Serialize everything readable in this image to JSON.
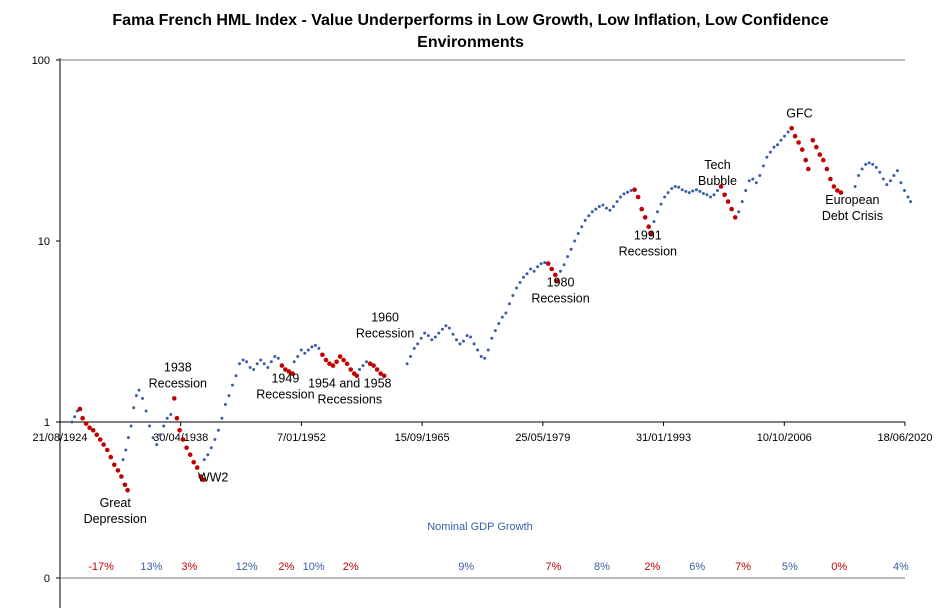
{
  "chart_data": {
    "type": "scatter",
    "title_line1": "Fama French HML Index - Value Underperforms in Low Growth, Low Inflation, Low Confidence",
    "title_line2": "Environments",
    "y_scale": "log",
    "y_ticks": [
      "100",
      "10",
      "1",
      "0"
    ],
    "x_ticks": [
      "21/08/1924",
      "30/04/1938",
      "7/01/1952",
      "15/09/1965",
      "25/05/1979",
      "31/01/1993",
      "10/10/2006",
      "18/06/2020"
    ],
    "xlim": [
      "1924-08-21",
      "2020-06-18"
    ],
    "colors": {
      "normal": "#3a5ea8",
      "weak": "#c00000",
      "axis": "#000000"
    },
    "series": [
      {
        "role": "normal",
        "points": [
          [
            1926.0,
            1.0
          ],
          [
            1926.3,
            1.07
          ],
          [
            1926.6,
            1.15
          ],
          [
            1931.8,
            0.62
          ],
          [
            1932.1,
            0.7
          ],
          [
            1932.4,
            0.82
          ],
          [
            1932.7,
            0.95
          ],
          [
            1933.0,
            1.2
          ],
          [
            1933.3,
            1.4
          ],
          [
            1933.6,
            1.5
          ],
          [
            1934.0,
            1.35
          ],
          [
            1934.4,
            1.15
          ],
          [
            1934.8,
            0.95
          ],
          [
            1935.2,
            0.82
          ],
          [
            1935.6,
            0.75
          ],
          [
            1936.0,
            0.85
          ],
          [
            1936.4,
            0.95
          ],
          [
            1936.8,
            1.05
          ],
          [
            1937.2,
            1.1
          ],
          [
            1941.0,
            0.62
          ],
          [
            1941.4,
            0.66
          ],
          [
            1941.8,
            0.72
          ],
          [
            1942.2,
            0.8
          ],
          [
            1942.6,
            0.9
          ],
          [
            1943.0,
            1.05
          ],
          [
            1943.4,
            1.25
          ],
          [
            1943.8,
            1.4
          ],
          [
            1944.2,
            1.6
          ],
          [
            1944.6,
            1.8
          ],
          [
            1945.0,
            2.1
          ],
          [
            1945.4,
            2.2
          ],
          [
            1945.8,
            2.15
          ],
          [
            1946.2,
            2.0
          ],
          [
            1946.6,
            1.95
          ],
          [
            1947.0,
            2.1
          ],
          [
            1947.4,
            2.2
          ],
          [
            1947.8,
            2.1
          ],
          [
            1948.2,
            2.0
          ],
          [
            1948.6,
            2.15
          ],
          [
            1949.0,
            2.3
          ],
          [
            1949.4,
            2.25
          ],
          [
            1951.2,
            2.15
          ],
          [
            1951.6,
            2.3
          ],
          [
            1952.0,
            2.5
          ],
          [
            1952.4,
            2.4
          ],
          [
            1952.8,
            2.5
          ],
          [
            1953.2,
            2.6
          ],
          [
            1953.6,
            2.65
          ],
          [
            1954.0,
            2.55
          ],
          [
            1958.6,
            1.95
          ],
          [
            1959.0,
            2.05
          ],
          [
            1959.4,
            2.15
          ],
          [
            1964.0,
            2.1
          ],
          [
            1964.4,
            2.3
          ],
          [
            1964.8,
            2.55
          ],
          [
            1965.2,
            2.7
          ],
          [
            1965.6,
            2.9
          ],
          [
            1966.0,
            3.1
          ],
          [
            1966.4,
            3.0
          ],
          [
            1966.8,
            2.85
          ],
          [
            1967.2,
            2.95
          ],
          [
            1967.6,
            3.1
          ],
          [
            1968.0,
            3.25
          ],
          [
            1968.4,
            3.4
          ],
          [
            1968.8,
            3.3
          ],
          [
            1969.2,
            3.05
          ],
          [
            1969.6,
            2.85
          ],
          [
            1970.0,
            2.7
          ],
          [
            1970.4,
            2.8
          ],
          [
            1970.8,
            3.0
          ],
          [
            1971.2,
            2.95
          ],
          [
            1971.6,
            2.7
          ],
          [
            1972.0,
            2.5
          ],
          [
            1972.4,
            2.3
          ],
          [
            1972.8,
            2.25
          ],
          [
            1973.2,
            2.5
          ],
          [
            1973.6,
            2.9
          ],
          [
            1974.0,
            3.2
          ],
          [
            1974.4,
            3.5
          ],
          [
            1974.8,
            3.8
          ],
          [
            1975.2,
            4.0
          ],
          [
            1975.6,
            4.5
          ],
          [
            1976.0,
            5.0
          ],
          [
            1976.4,
            5.5
          ],
          [
            1976.8,
            5.9
          ],
          [
            1977.2,
            6.3
          ],
          [
            1977.6,
            6.6
          ],
          [
            1978.0,
            7.0
          ],
          [
            1978.4,
            6.8
          ],
          [
            1978.8,
            7.2
          ],
          [
            1979.2,
            7.5
          ],
          [
            1979.6,
            7.6
          ],
          [
            1981.4,
            6.8
          ],
          [
            1981.8,
            7.4
          ],
          [
            1982.2,
            8.2
          ],
          [
            1982.6,
            9.0
          ],
          [
            1983.0,
            10.0
          ],
          [
            1983.4,
            11.0
          ],
          [
            1983.8,
            12.0
          ],
          [
            1984.2,
            13.0
          ],
          [
            1984.6,
            13.8
          ],
          [
            1985.0,
            14.5
          ],
          [
            1985.4,
            15.0
          ],
          [
            1985.8,
            15.5
          ],
          [
            1986.2,
            15.8
          ],
          [
            1986.6,
            15.2
          ],
          [
            1987.0,
            14.8
          ],
          [
            1987.4,
            15.5
          ],
          [
            1987.8,
            16.5
          ],
          [
            1988.2,
            17.5
          ],
          [
            1988.6,
            18.2
          ],
          [
            1989.0,
            18.6
          ],
          [
            1989.4,
            19.0
          ],
          [
            1992.0,
            12.8
          ],
          [
            1992.4,
            14.5
          ],
          [
            1992.8,
            16.0
          ],
          [
            1993.2,
            17.5
          ],
          [
            1993.6,
            18.5
          ],
          [
            1994.0,
            19.5
          ],
          [
            1994.4,
            20.0
          ],
          [
            1994.8,
            19.8
          ],
          [
            1995.2,
            19.2
          ],
          [
            1995.6,
            18.8
          ],
          [
            1996.0,
            18.5
          ],
          [
            1996.4,
            18.9
          ],
          [
            1996.8,
            19.2
          ],
          [
            1997.2,
            18.8
          ],
          [
            1997.6,
            18.3
          ],
          [
            1998.0,
            18.0
          ],
          [
            1998.4,
            17.5
          ],
          [
            1998.8,
            18.0
          ],
          [
            1999.2,
            19.0
          ],
          [
            2001.6,
            14.5
          ],
          [
            2002.0,
            16.5
          ],
          [
            2002.4,
            19.0
          ],
          [
            2002.8,
            21.5
          ],
          [
            2003.2,
            22.0
          ],
          [
            2003.6,
            21.0
          ],
          [
            2004.0,
            23.0
          ],
          [
            2004.4,
            26.0
          ],
          [
            2004.8,
            29.0
          ],
          [
            2005.2,
            31.0
          ],
          [
            2005.6,
            33.0
          ],
          [
            2006.0,
            34.0
          ],
          [
            2006.4,
            36.0
          ],
          [
            2006.8,
            38.0
          ],
          [
            2007.2,
            40.0
          ],
          [
            2014.8,
            20.0
          ],
          [
            2015.2,
            23.0
          ],
          [
            2015.6,
            25.0
          ],
          [
            2016.0,
            26.5
          ],
          [
            2016.4,
            27.0
          ],
          [
            2016.8,
            26.5
          ],
          [
            2017.2,
            25.5
          ],
          [
            2017.6,
            24.0
          ],
          [
            2018.0,
            22.0
          ],
          [
            2018.4,
            20.5
          ],
          [
            2018.8,
            21.5
          ],
          [
            2019.2,
            23.0
          ],
          [
            2019.6,
            24.5
          ],
          [
            2020.0,
            21.0
          ],
          [
            2020.4,
            19.0
          ],
          [
            2020.8,
            17.5
          ],
          [
            2021.1,
            16.5
          ]
        ]
      },
      {
        "role": "weak",
        "points": [
          [
            1926.9,
            1.18
          ],
          [
            1927.2,
            1.05
          ],
          [
            1927.6,
            0.98
          ],
          [
            1928.0,
            0.93
          ],
          [
            1928.4,
            0.9
          ],
          [
            1928.8,
            0.85
          ],
          [
            1929.2,
            0.8
          ],
          [
            1929.6,
            0.75
          ],
          [
            1930.0,
            0.7
          ],
          [
            1930.4,
            0.64
          ],
          [
            1930.8,
            0.58
          ],
          [
            1931.2,
            0.54
          ],
          [
            1931.6,
            0.5
          ],
          [
            1932.0,
            0.45
          ],
          [
            1932.3,
            0.42
          ],
          [
            1937.6,
            1.35
          ],
          [
            1937.9,
            1.05
          ],
          [
            1938.2,
            0.9
          ],
          [
            1938.6,
            0.8
          ],
          [
            1939.0,
            0.72
          ],
          [
            1939.4,
            0.66
          ],
          [
            1939.8,
            0.6
          ],
          [
            1940.2,
            0.56
          ],
          [
            1940.6,
            0.5
          ],
          [
            1940.9,
            0.48
          ],
          [
            1949.8,
            2.05
          ],
          [
            1950.2,
            1.95
          ],
          [
            1950.6,
            1.9
          ],
          [
            1951.0,
            1.85
          ],
          [
            1954.4,
            2.35
          ],
          [
            1954.8,
            2.2
          ],
          [
            1955.2,
            2.1
          ],
          [
            1955.6,
            2.05
          ],
          [
            1956.0,
            2.15
          ],
          [
            1956.4,
            2.3
          ],
          [
            1956.8,
            2.2
          ],
          [
            1957.2,
            2.1
          ],
          [
            1957.6,
            1.95
          ],
          [
            1958.0,
            1.85
          ],
          [
            1958.3,
            1.8
          ],
          [
            1959.8,
            2.1
          ],
          [
            1960.2,
            2.05
          ],
          [
            1960.6,
            1.95
          ],
          [
            1961.0,
            1.85
          ],
          [
            1961.4,
            1.8
          ],
          [
            1980.0,
            7.5
          ],
          [
            1980.4,
            7.0
          ],
          [
            1980.8,
            6.5
          ],
          [
            1981.0,
            6.0
          ],
          [
            1989.8,
            19.2
          ],
          [
            1990.2,
            17.5
          ],
          [
            1990.6,
            15.0
          ],
          [
            1991.0,
            13.5
          ],
          [
            1991.4,
            12.0
          ],
          [
            1991.7,
            11.0
          ],
          [
            1999.6,
            20.0
          ],
          [
            2000.0,
            18.0
          ],
          [
            2000.4,
            16.5
          ],
          [
            2000.8,
            15.0
          ],
          [
            2001.2,
            13.5
          ],
          [
            2007.6,
            42.0
          ],
          [
            2008.0,
            38.0
          ],
          [
            2008.4,
            35.0
          ],
          [
            2008.8,
            32.0
          ],
          [
            2009.2,
            28.0
          ],
          [
            2009.5,
            25.0
          ],
          [
            2010.0,
            36.0
          ],
          [
            2010.4,
            33.0
          ],
          [
            2010.8,
            30.0
          ],
          [
            2011.2,
            28.0
          ],
          [
            2011.6,
            25.0
          ],
          [
            2012.0,
            22.0
          ],
          [
            2012.4,
            20.0
          ],
          [
            2012.8,
            19.0
          ],
          [
            2013.2,
            18.5
          ]
        ]
      }
    ],
    "annotations": [
      {
        "lines": [
          "Great",
          "Depression"
        ],
        "x": 1930.9,
        "y": 0.34
      },
      {
        "lines": [
          "1938",
          "Recession"
        ],
        "x": 1938.0,
        "y": 1.9
      },
      {
        "lines": [
          "WW2"
        ],
        "x": 1942.0,
        "y": 0.47
      },
      {
        "lines": [
          "1949",
          "Recession"
        ],
        "x": 1950.2,
        "y": 1.65
      },
      {
        "lines": [
          "1954 and 1958",
          "Recessions"
        ],
        "x": 1957.5,
        "y": 1.55
      },
      {
        "lines": [
          "1960",
          "Recession"
        ],
        "x": 1961.5,
        "y": 3.6
      },
      {
        "lines": [
          "1980",
          "Recession"
        ],
        "x": 1981.4,
        "y": 5.6
      },
      {
        "lines": [
          "1991",
          "Recession"
        ],
        "x": 1991.3,
        "y": 10.2
      },
      {
        "lines": [
          "Tech",
          "Bubble"
        ],
        "x": 1999.2,
        "y": 25.0
      },
      {
        "lines": [
          "GFC"
        ],
        "x": 2008.5,
        "y": 48.0
      },
      {
        "lines": [
          "European",
          "Debt Crisis"
        ],
        "x": 2014.5,
        "y": 16.0
      }
    ],
    "gdp_label": "Nominal GDP Growth",
    "gdp_values": [
      {
        "text": "-17%",
        "x": 1929.3,
        "weak": true
      },
      {
        "text": "13%",
        "x": 1935.0,
        "weak": false
      },
      {
        "text": "3%",
        "x": 1939.3,
        "weak": true
      },
      {
        "text": "12%",
        "x": 1945.8,
        "weak": false
      },
      {
        "text": "2%",
        "x": 1950.3,
        "weak": true
      },
      {
        "text": "10%",
        "x": 1953.4,
        "weak": false
      },
      {
        "text": "2%",
        "x": 1957.6,
        "weak": true
      },
      {
        "text": "9%",
        "x": 1970.7,
        "weak": false
      },
      {
        "text": "7%",
        "x": 1980.6,
        "weak": true
      },
      {
        "text": "8%",
        "x": 1986.1,
        "weak": false
      },
      {
        "text": "2%",
        "x": 1991.8,
        "weak": true
      },
      {
        "text": "6%",
        "x": 1996.9,
        "weak": false
      },
      {
        "text": "7%",
        "x": 2002.1,
        "weak": true
      },
      {
        "text": "5%",
        "x": 2007.4,
        "weak": false
      },
      {
        "text": "0%",
        "x": 2013.0,
        "weak": true
      },
      {
        "text": "4%",
        "x": 2020.0,
        "weak": false
      }
    ]
  }
}
